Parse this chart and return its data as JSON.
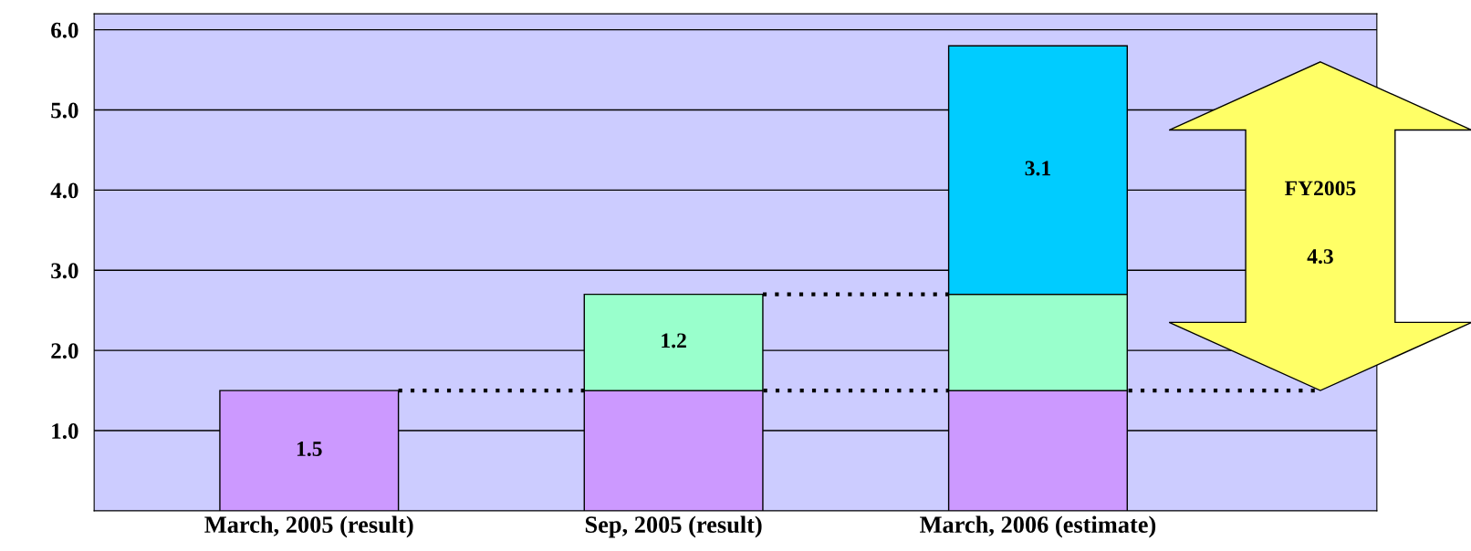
{
  "chart_data": {
    "type": "bar",
    "stacked": true,
    "categories": [
      "March, 2005 (result)",
      "Sep, 2005 (result)",
      "March, 2006 (estimate)"
    ],
    "series": [
      {
        "color": "#cc99ff",
        "values": [
          1.5,
          1.5,
          1.5
        ],
        "value_labels": [
          "1.5",
          null,
          null
        ]
      },
      {
        "color": "#99ffcc",
        "values": [
          null,
          1.2,
          1.2
        ],
        "value_labels": [
          null,
          "1.2",
          null
        ]
      },
      {
        "color": "#00ccff",
        "values": [
          null,
          null,
          3.1
        ],
        "value_labels": [
          null,
          null,
          "3.1"
        ]
      }
    ],
    "ylim": [
      0,
      6.2
    ],
    "yticks": [
      {
        "value": 1,
        "label": "1.0"
      },
      {
        "value": 2,
        "label": "2.0"
      },
      {
        "value": 3,
        "label": "3.0"
      },
      {
        "value": 4,
        "label": "4.0"
      },
      {
        "value": 5,
        "label": "5.0"
      },
      {
        "value": 6,
        "label": "6.0"
      }
    ],
    "grid": "y",
    "legend": false,
    "ref_lines": [
      {
        "axis": "y",
        "value": 1.5,
        "color": "#000000",
        "line_style": "dotted"
      },
      {
        "axis": "y",
        "value": 2.7,
        "color": "#000000",
        "line_style": "dotted"
      }
    ],
    "annotations": [
      "FY2005",
      "4.3"
    ]
  }
}
